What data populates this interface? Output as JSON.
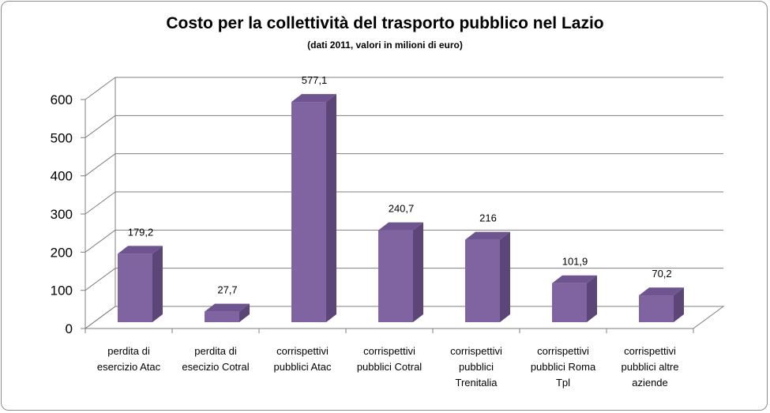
{
  "chart_data": {
    "type": "bar",
    "title": "Costo per la collettività del trasporto pubblico nel Lazio",
    "subtitle": "(dati 2011, valori in milioni di euro)",
    "categories": [
      [
        "perdita di",
        "esercizio Atac"
      ],
      [
        "perdita di",
        "esecizio Cotral"
      ],
      [
        "corrispettivi",
        "pubblici Atac"
      ],
      [
        "corrispettivi",
        "pubblici Cotral"
      ],
      [
        "corrispettivi",
        "pubblici",
        "Trenitalia"
      ],
      [
        "corrispettivi",
        "pubblici Roma",
        "Tpl"
      ],
      [
        "corrispettivi",
        "pubblici altre",
        "aziende"
      ]
    ],
    "values": [
      179.2,
      27.7,
      577.1,
      240.7,
      216,
      101.9,
      70.2
    ],
    "value_labels": [
      "179,2",
      "27,7",
      "577,1",
      "240,7",
      "216",
      "101,9",
      "70,2"
    ],
    "yticks": [
      "0",
      "100",
      "200",
      "300",
      "400",
      "500",
      "600"
    ],
    "ylim": [
      0,
      600
    ],
    "grid": true,
    "three_d": true,
    "colors": {
      "bar_front": "#8064a2",
      "bar_side": "#5b4677",
      "bar_top": "#6e5590",
      "grid": "#7f7f7f"
    }
  }
}
